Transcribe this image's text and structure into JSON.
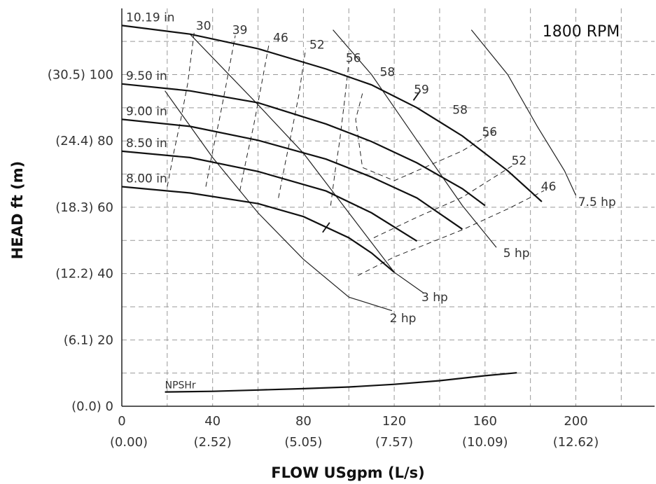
{
  "chart_data": {
    "type": "line",
    "title": "",
    "annotation": "1800 RPM",
    "xlabel": "FLOW USgpm (L/s)",
    "ylabel": "HEAD ft (m)",
    "xlim": [
      0,
      230
    ],
    "ylim": [
      0,
      118
    ],
    "grid": true,
    "x_ticks": [
      {
        "value": 0,
        "label": "0",
        "sub": ""
      },
      {
        "value": 40,
        "label": "40",
        "sub": "(2.52)"
      },
      {
        "value": 80,
        "label": "80",
        "sub": "(5.05)"
      },
      {
        "value": 120,
        "label": "120",
        "sub": "(7.57)"
      },
      {
        "value": 160,
        "label": "160",
        "sub": "(10.09)"
      },
      {
        "value": 200,
        "label": "200",
        "sub": "(12.62)"
      }
    ],
    "x_sub_zero": "(0.00)",
    "y_ticks": [
      {
        "value": 0,
        "label": "(0.0) 0"
      },
      {
        "value": 20,
        "label": "(6.1) 20"
      },
      {
        "value": 40,
        "label": "(12.2) 40"
      },
      {
        "value": 60,
        "label": "(18.3) 60"
      },
      {
        "value": 80,
        "label": "(24.4) 80"
      },
      {
        "value": 100,
        "label": "(30.5) 100"
      }
    ],
    "impeller_curves": [
      {
        "name": "10.19 in",
        "points": [
          [
            0,
            114.8
          ],
          [
            30,
            112.2
          ],
          [
            60,
            107.8
          ],
          [
            90,
            101.7
          ],
          [
            110,
            96.9
          ],
          [
            130,
            90
          ],
          [
            150,
            81.5
          ],
          [
            170,
            71
          ],
          [
            185,
            61.7
          ],
          [
            193,
            61.7
          ]
        ]
      },
      {
        "name": "9.50 in",
        "points": [
          [
            0,
            97.2
          ],
          [
            30,
            95.1
          ],
          [
            60,
            91.5
          ],
          [
            90,
            85.1
          ],
          [
            110,
            79.8
          ],
          [
            130,
            73.4
          ],
          [
            150,
            65.6
          ],
          [
            160,
            60.5
          ],
          [
            173,
            52.6
          ]
        ]
      },
      {
        "name": "9.00 in",
        "points": [
          [
            0,
            86.5
          ],
          [
            30,
            84.4
          ],
          [
            60,
            80.2
          ],
          [
            90,
            74.5
          ],
          [
            110,
            69.1
          ],
          [
            130,
            62.8
          ],
          [
            150,
            53.4
          ],
          [
            160,
            47.9
          ]
        ]
      },
      {
        "name": "8.50 in",
        "points": [
          [
            0,
            76.9
          ],
          [
            30,
            75
          ],
          [
            60,
            70.8
          ],
          [
            90,
            64.9
          ],
          [
            110,
            58.3
          ],
          [
            130,
            49.8
          ],
          [
            141,
            43.2
          ]
        ]
      },
      {
        "name": "8.00 in",
        "points": [
          [
            0,
            66.2
          ],
          [
            30,
            64.3
          ],
          [
            60,
            61.1
          ],
          [
            80,
            57.2
          ],
          [
            100,
            50.8
          ],
          [
            110,
            46.2
          ],
          [
            120,
            40.4
          ],
          [
            134,
            32.9
          ]
        ]
      }
    ],
    "power_curves": [
      {
        "name": "2 hp",
        "label_pos": [
          118,
          26.6
        ],
        "points": [
          [
            19,
            95.1
          ],
          [
            40,
            75
          ],
          [
            60,
            58.3
          ],
          [
            80,
            44.3
          ],
          [
            100,
            32.9
          ],
          [
            119,
            28.8
          ]
        ]
      },
      {
        "name": "3 hp",
        "label_pos": [
          132,
          32.9
        ],
        "points": [
          [
            30,
            112.2
          ],
          [
            60,
            90.9
          ],
          [
            80,
            76.3
          ],
          [
            100,
            58.3
          ],
          [
            120,
            40.4
          ],
          [
            133,
            34.1
          ]
        ]
      },
      {
        "name": "5 hp",
        "label_pos": [
          168,
          46.2
        ],
        "points": [
          [
            93,
            113.5
          ],
          [
            110,
            100
          ],
          [
            130,
            80.2
          ],
          [
            150,
            60.5
          ],
          [
            165,
            47.9
          ]
        ]
      },
      {
        "name": "7.5 hp",
        "label_pos": [
          201,
          61.7
        ],
        "points": [
          [
            154,
            113.5
          ],
          [
            170,
            100
          ],
          [
            183,
            84.4
          ],
          [
            195,
            71
          ],
          [
            200,
            63.6
          ]
        ]
      }
    ],
    "efficiency_curves": [
      {
        "value": 30,
        "points": [
          [
            20,
            66.2
          ],
          [
            23,
            76.9
          ],
          [
            26,
            86.5
          ],
          [
            29,
            97.2
          ],
          [
            32,
            113.5
          ]
        ]
      },
      {
        "value": 39,
        "points": [
          [
            37,
            66.2
          ],
          [
            40,
            76.9
          ],
          [
            43,
            86.5
          ],
          [
            46,
            97.2
          ],
          [
            50,
            111.8
          ]
        ]
      },
      {
        "value": 46,
        "points": [
          [
            52,
            65
          ],
          [
            55,
            75
          ],
          [
            58,
            84.4
          ],
          [
            61,
            95.1
          ],
          [
            65,
            109.9
          ]
        ]
      },
      {
        "value": 52,
        "points": [
          [
            69,
            62.8
          ],
          [
            72,
            73.4
          ],
          [
            75,
            83.4
          ],
          [
            78,
            93.9
          ],
          [
            81,
            107.8
          ]
        ]
      },
      {
        "value": 56,
        "points": [
          [
            92,
            60.5
          ],
          [
            94,
            71
          ],
          [
            96,
            80.2
          ],
          [
            98,
            91.5
          ],
          [
            100,
            103.8
          ]
        ]
      }
    ],
    "efficiency_labels": [
      {
        "text": "30",
        "x": 36,
        "y": 113.5
      },
      {
        "text": "39",
        "x": 52,
        "y": 112.2
      },
      {
        "text": "46",
        "x": 70,
        "y": 109.9
      },
      {
        "text": "52",
        "x": 86,
        "y": 107.8
      },
      {
        "text": "56",
        "x": 102,
        "y": 103.8
      },
      {
        "text": "58",
        "x": 117,
        "y": 99.6
      },
      {
        "text": "59",
        "x": 132,
        "y": 94.3
      },
      {
        "text": "58",
        "x": 149,
        "y": 88.2
      },
      {
        "text": "56",
        "x": 162,
        "y": 81.5
      },
      {
        "text": "52",
        "x": 175,
        "y": 72.9
      },
      {
        "text": "46",
        "x": 188,
        "y": 65
      }
    ],
    "efficiency_right": [
      {
        "value": 58,
        "points": [
          [
            106,
            94.3
          ],
          [
            103,
            86.5
          ],
          [
            106,
            72
          ],
          [
            120,
            68
          ],
          [
            150,
            77
          ],
          [
            164,
            82.8
          ]
        ]
      },
      {
        "value": 52,
        "points": [
          [
            111,
            50.8
          ],
          [
            130,
            57
          ],
          [
            150,
            63
          ],
          [
            172,
            72.5
          ]
        ]
      },
      {
        "value": 46,
        "points": [
          [
            104,
            39.4
          ],
          [
            120,
            45
          ],
          [
            150,
            53.2
          ],
          [
            170,
            59.5
          ],
          [
            186,
            65
          ]
        ]
      }
    ],
    "bep_marks": [
      [
        130,
        93.7
      ],
      [
        90,
        53.9
      ]
    ],
    "npshr": {
      "name": "NPSHr",
      "points": [
        [
          19,
          4.3
        ],
        [
          40,
          4.5
        ],
        [
          60,
          4.9
        ],
        [
          80,
          5.3
        ],
        [
          100,
          5.8
        ],
        [
          120,
          6.6
        ],
        [
          140,
          7.7
        ],
        [
          160,
          9.2
        ],
        [
          174,
          10.1
        ]
      ]
    }
  }
}
